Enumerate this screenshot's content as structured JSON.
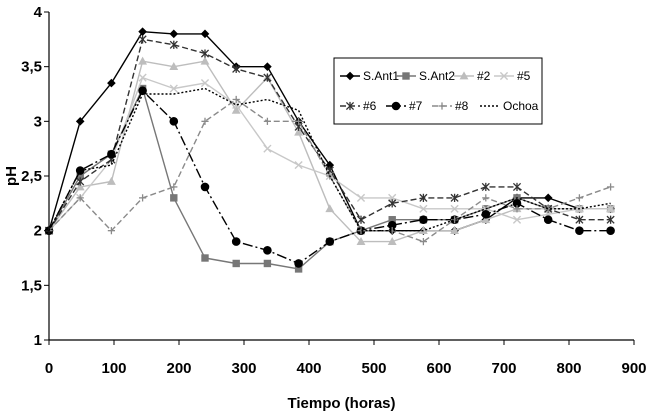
{
  "chart_data": {
    "type": "line",
    "title": "",
    "xlabel": "Tiempo (horas)",
    "ylabel": "pH",
    "xlim": [
      0,
      900
    ],
    "ylim": [
      1,
      4
    ],
    "xticks": [
      "0",
      "100",
      "200",
      "300",
      "400",
      "500",
      "600",
      "700",
      "800",
      "900"
    ],
    "yticks": [
      "1",
      "1,5",
      "2",
      "2,5",
      "3",
      "3,5",
      "4"
    ],
    "grid": false,
    "legend_position": "top-right",
    "series": [
      {
        "name": "S.Ant1",
        "marker": "diamond",
        "dash": "solid",
        "color": "#000000",
        "x": [
          0,
          48,
          96,
          144,
          192,
          240,
          288,
          336,
          384,
          432,
          480,
          528,
          576,
          624,
          672,
          720,
          768,
          816,
          864
        ],
        "y": [
          2.0,
          3.0,
          3.35,
          3.82,
          3.8,
          3.8,
          3.5,
          3.5,
          3.0,
          2.6,
          2.0,
          2.0,
          2.0,
          2.0,
          2.1,
          2.3,
          2.3,
          2.2,
          2.2
        ]
      },
      {
        "name": "S.Ant2",
        "marker": "square",
        "dash": "solid",
        "color": "#777777",
        "x": [
          0,
          48,
          96,
          144,
          192,
          240,
          288,
          336,
          384,
          432,
          480,
          528,
          576,
          624,
          672,
          720,
          768,
          816,
          864
        ],
        "y": [
          2.0,
          2.5,
          2.7,
          3.3,
          2.3,
          1.75,
          1.7,
          1.7,
          1.65,
          1.9,
          2.0,
          2.1,
          2.1,
          2.1,
          2.2,
          2.3,
          2.2,
          2.2,
          2.2
        ]
      },
      {
        "name": "#2",
        "marker": "triangle",
        "dash": "solid",
        "color": "#bdbdbd",
        "x": [
          0,
          48,
          96,
          144,
          192,
          240,
          288,
          336,
          384,
          432,
          480,
          528,
          576,
          624,
          672,
          720,
          768,
          816,
          864
        ],
        "y": [
          2.0,
          2.4,
          2.45,
          3.55,
          3.5,
          3.55,
          3.1,
          3.4,
          2.9,
          2.2,
          1.9,
          1.9,
          2.0,
          2.0,
          2.1,
          2.2,
          2.2,
          2.2,
          2.2
        ]
      },
      {
        "name": "#5",
        "marker": "x",
        "dash": "solid",
        "color": "#c8c8c8",
        "x": [
          0,
          48,
          96,
          144,
          192,
          240,
          288,
          336,
          384,
          432,
          480,
          528,
          576,
          624,
          672,
          720,
          768,
          816,
          864
        ],
        "y": [
          2.0,
          2.3,
          2.65,
          3.4,
          3.3,
          3.35,
          3.15,
          2.75,
          2.6,
          2.5,
          2.3,
          2.3,
          2.2,
          2.2,
          2.2,
          2.1,
          2.15,
          2.2,
          2.2
        ]
      },
      {
        "name": "#6",
        "marker": "asterisk",
        "dash": "dashed",
        "color": "#333333",
        "x": [
          0,
          48,
          96,
          144,
          192,
          240,
          288,
          336,
          384,
          432,
          480,
          528,
          576,
          624,
          672,
          720,
          768,
          816,
          864
        ],
        "y": [
          2.0,
          2.45,
          2.65,
          3.75,
          3.7,
          3.62,
          3.48,
          3.4,
          2.95,
          2.55,
          2.1,
          2.25,
          2.3,
          2.3,
          2.4,
          2.4,
          2.2,
          2.1,
          2.1
        ]
      },
      {
        "name": "#7",
        "marker": "circle",
        "dash": "dashdot",
        "color": "#000000",
        "x": [
          0,
          48,
          96,
          144,
          192,
          240,
          288,
          336,
          384,
          432,
          480,
          528,
          576,
          624,
          672,
          720,
          768,
          816,
          864
        ],
        "y": [
          2.0,
          2.55,
          2.7,
          3.28,
          3.0,
          2.4,
          1.9,
          1.82,
          1.7,
          1.9,
          2.0,
          2.05,
          2.1,
          2.1,
          2.15,
          2.25,
          2.1,
          2.0,
          2.0
        ]
      },
      {
        "name": "#8",
        "marker": "plus",
        "dash": "dashed",
        "color": "#8a8a8a",
        "x": [
          0,
          48,
          96,
          144,
          192,
          240,
          288,
          336,
          384,
          432,
          480,
          528,
          576,
          624,
          672,
          720,
          768,
          816,
          864
        ],
        "y": [
          2.0,
          2.3,
          2.0,
          2.3,
          2.4,
          3.0,
          3.2,
          3.0,
          3.0,
          2.5,
          2.0,
          2.0,
          1.9,
          2.1,
          2.3,
          2.2,
          2.2,
          2.3,
          2.4
        ]
      },
      {
        "name": "Ochoa",
        "marker": "none",
        "dash": "dotted",
        "color": "#000000",
        "x": [
          0,
          48,
          96,
          144,
          192,
          240,
          288,
          336,
          384,
          432,
          480,
          528,
          576,
          624,
          672,
          720,
          768,
          816,
          864
        ],
        "y": [
          2.0,
          2.55,
          2.6,
          3.25,
          3.25,
          3.3,
          3.15,
          3.2,
          3.1,
          2.5,
          2.0,
          2.0,
          2.0,
          2.1,
          2.2,
          2.3,
          2.2,
          2.2,
          2.25
        ]
      }
    ]
  }
}
